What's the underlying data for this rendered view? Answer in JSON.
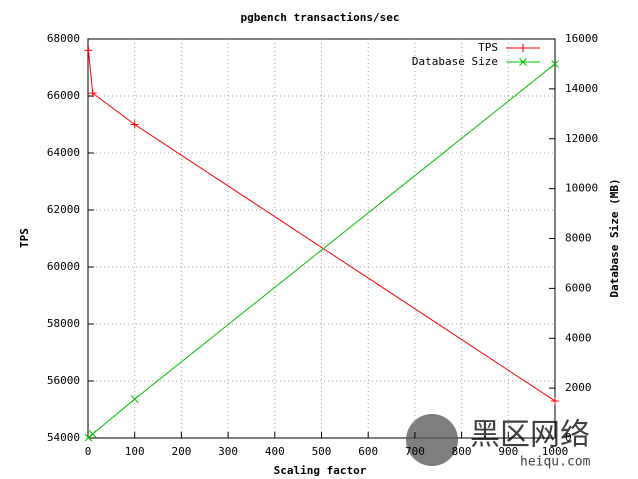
{
  "chart_data": {
    "type": "line",
    "title": "pgbench transactions/sec",
    "x_label": "Scaling factor",
    "y_label": "TPS",
    "y2_label": "Database Size (MB)",
    "x": [
      1,
      10,
      100,
      1000
    ],
    "series": [
      {
        "name": "TPS",
        "color": "#ff0000",
        "marker": "plus",
        "values": [
          67600,
          66100,
          65000,
          55300
        ]
      },
      {
        "name": "Database Size",
        "color": "#00c000",
        "marker": "cross",
        "axis": "y2",
        "values": [
          16,
          160,
          1560,
          15000
        ]
      }
    ],
    "xlim": [
      0,
      1000
    ],
    "xticks": [
      0,
      100,
      200,
      300,
      400,
      500,
      600,
      700,
      800,
      900,
      1000
    ],
    "ylim": [
      54000,
      68000
    ],
    "yticks": [
      54000,
      56000,
      58000,
      60000,
      62000,
      64000,
      66000,
      68000
    ],
    "y2lim": [
      0,
      16000
    ],
    "y2ticks": [
      0,
      2000,
      4000,
      6000,
      8000,
      10000,
      12000,
      14000,
      16000
    ],
    "grid": true,
    "legend": "top-right",
    "watermark": {
      "text": "黑区网络",
      "url": "heiqu.com"
    }
  }
}
